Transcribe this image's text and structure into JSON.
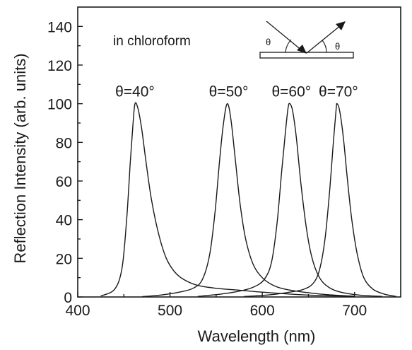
{
  "chart_data": {
    "type": "line",
    "xlabel": "Wavelength (nm)",
    "ylabel": "Reflection Intensity  (arb. units)",
    "xlim": [
      400,
      750
    ],
    "ylim": [
      0,
      150
    ],
    "xticks": [
      400,
      500,
      600,
      700
    ],
    "yticks": [
      0,
      20,
      40,
      60,
      80,
      100,
      120,
      140
    ],
    "grid": false,
    "annotation": "in chloroform",
    "inset_label": "θ",
    "series": [
      {
        "name": "θ=40°",
        "peak": 462,
        "values": [
          [
            425,
            0.5
          ],
          [
            440,
            4
          ],
          [
            448,
            15
          ],
          [
            453,
            40
          ],
          [
            457,
            70
          ],
          [
            460,
            90
          ],
          [
            462,
            100
          ],
          [
            465,
            98
          ],
          [
            469,
            88
          ],
          [
            474,
            70
          ],
          [
            480,
            50
          ],
          [
            488,
            32
          ],
          [
            496,
            20
          ],
          [
            505,
            13
          ],
          [
            515,
            9
          ],
          [
            530,
            6
          ],
          [
            550,
            4.5
          ],
          [
            575,
            3.5
          ],
          [
            600,
            2.5
          ],
          [
            630,
            1.5
          ],
          [
            660,
            0.8
          ],
          [
            700,
            0.3
          ]
        ]
      },
      {
        "name": "θ=50°",
        "peak": 562,
        "values": [
          [
            470,
            0.2
          ],
          [
            490,
            1
          ],
          [
            510,
            2.5
          ],
          [
            525,
            4.5
          ],
          [
            535,
            9
          ],
          [
            543,
            22
          ],
          [
            549,
            45
          ],
          [
            554,
            72
          ],
          [
            558,
            90
          ],
          [
            562,
            100
          ],
          [
            566,
            92
          ],
          [
            571,
            70
          ],
          [
            576,
            48
          ],
          [
            582,
            30
          ],
          [
            590,
            17
          ],
          [
            600,
            10
          ],
          [
            612,
            6
          ],
          [
            625,
            4
          ],
          [
            645,
            2.5
          ],
          [
            670,
            1.2
          ],
          [
            700,
            0.4
          ]
        ]
      },
      {
        "name": "θ=60°",
        "peak": 630,
        "values": [
          [
            530,
            0.3
          ],
          [
            555,
            1.5
          ],
          [
            575,
            3
          ],
          [
            590,
            5
          ],
          [
            602,
            9
          ],
          [
            610,
            18
          ],
          [
            616,
            38
          ],
          [
            621,
            65
          ],
          [
            625,
            85
          ],
          [
            628,
            98
          ],
          [
            630,
            100
          ],
          [
            633,
            96
          ],
          [
            637,
            82
          ],
          [
            642,
            58
          ],
          [
            648,
            35
          ],
          [
            654,
            20
          ],
          [
            662,
            10
          ],
          [
            672,
            5
          ],
          [
            685,
            2.5
          ],
          [
            705,
            1
          ],
          [
            730,
            0.3
          ]
        ]
      },
      {
        "name": "θ=70°",
        "peak": 681,
        "values": [
          [
            580,
            0.2
          ],
          [
            610,
            1.2
          ],
          [
            630,
            2.5
          ],
          [
            645,
            4
          ],
          [
            655,
            7
          ],
          [
            662,
            14
          ],
          [
            668,
            30
          ],
          [
            673,
            55
          ],
          [
            677,
            80
          ],
          [
            680,
            97
          ],
          [
            681,
            100
          ],
          [
            684,
            96
          ],
          [
            688,
            82
          ],
          [
            692,
            62
          ],
          [
            697,
            40
          ],
          [
            703,
            22
          ],
          [
            710,
            10
          ],
          [
            720,
            4
          ],
          [
            732,
            1.5
          ],
          [
            745,
            0.3
          ]
        ]
      }
    ]
  }
}
